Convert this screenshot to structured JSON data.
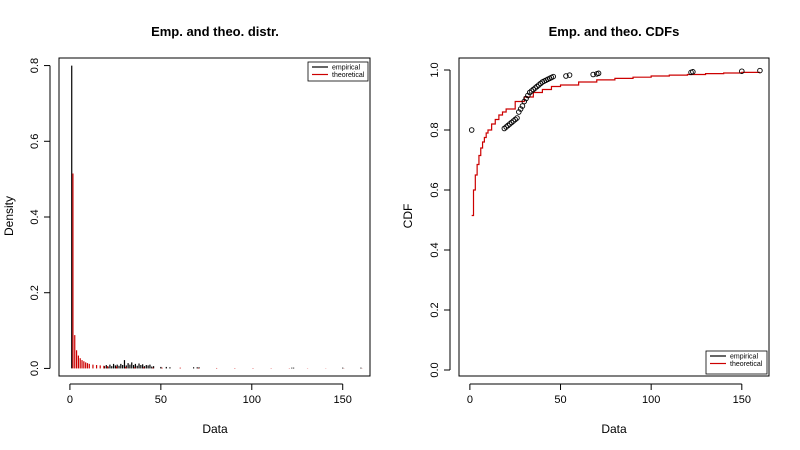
{
  "chart_data": [
    {
      "type": "bar",
      "title": "Emp. and theo. distr.",
      "xlabel": "Data",
      "ylabel": "Density",
      "xlim": [
        -6,
        165
      ],
      "ylim": [
        -0.02,
        0.82
      ],
      "xticks": [
        0,
        50,
        100,
        150
      ],
      "yticks": [
        0.0,
        0.2,
        0.4,
        0.6,
        0.8
      ],
      "legend": {
        "position": "top-right",
        "entries": [
          {
            "name": "empirical",
            "color": "#000000"
          },
          {
            "name": "theoretical",
            "color": "#cc0000"
          }
        ]
      },
      "series": [
        {
          "name": "empirical",
          "color": "#000000",
          "x": [
            1,
            19,
            20,
            21,
            22,
            23,
            24,
            25,
            26,
            27,
            28,
            29,
            30,
            31,
            32,
            33,
            34,
            35,
            36,
            37,
            38,
            39,
            40,
            41,
            42,
            43,
            44,
            45,
            46,
            50,
            53,
            55,
            68,
            70,
            71,
            122,
            123,
            150,
            160
          ],
          "values": [
            0.8,
            0.006,
            0.009,
            0.005,
            0.01,
            0.006,
            0.012,
            0.008,
            0.01,
            0.007,
            0.012,
            0.009,
            0.022,
            0.008,
            0.014,
            0.01,
            0.016,
            0.009,
            0.012,
            0.007,
            0.013,
            0.009,
            0.011,
            0.006,
            0.009,
            0.008,
            0.01,
            0.005,
            0.006,
            0.004,
            0.004,
            0.003,
            0.003,
            0.003,
            0.003,
            0.002,
            0.002,
            0.002,
            0.002
          ]
        },
        {
          "name": "theoretical",
          "color": "#cc0000",
          "x": [
            1,
            2,
            3,
            4,
            5,
            6,
            7,
            8,
            9,
            10,
            12,
            14,
            16,
            18,
            20,
            25,
            30,
            35,
            40,
            45,
            50,
            60,
            70,
            80,
            90,
            100,
            110,
            120,
            130,
            140,
            150,
            160
          ],
          "values": [
            0.515,
            0.088,
            0.048,
            0.034,
            0.027,
            0.022,
            0.019,
            0.016,
            0.014,
            0.012,
            0.01,
            0.009,
            0.008,
            0.007,
            0.006,
            0.005,
            0.004,
            0.003,
            0.003,
            0.002,
            0.002,
            0.002,
            0.0015,
            0.0012,
            0.001,
            0.001,
            0.0008,
            0.0007,
            0.0006,
            0.0005,
            0.0005,
            0.0004
          ]
        }
      ]
    },
    {
      "type": "line",
      "title": "Emp. and theo. CDFs",
      "xlabel": "Data",
      "ylabel": "CDF",
      "xlim": [
        -6,
        165
      ],
      "ylim": [
        -0.02,
        1.04
      ],
      "xticks": [
        0,
        50,
        100,
        150
      ],
      "yticks": [
        0.0,
        0.2,
        0.4,
        0.6,
        0.8,
        1.0
      ],
      "legend": {
        "position": "bottom-right",
        "entries": [
          {
            "name": "empirical",
            "color": "#000000"
          },
          {
            "name": "theoretical",
            "color": "#cc0000"
          }
        ]
      },
      "series": [
        {
          "name": "empirical",
          "color": "#000000",
          "marker": "open-circle",
          "x": [
            1,
            19,
            20,
            21,
            22,
            23,
            24,
            25,
            26,
            27,
            28,
            29,
            30,
            31,
            32,
            33,
            34,
            35,
            36,
            37,
            38,
            39,
            40,
            41,
            42,
            43,
            44,
            45,
            46,
            53,
            55,
            68,
            70,
            71,
            122,
            123,
            150,
            160
          ],
          "y": [
            0.8,
            0.805,
            0.81,
            0.815,
            0.82,
            0.825,
            0.83,
            0.835,
            0.84,
            0.86,
            0.87,
            0.88,
            0.895,
            0.905,
            0.915,
            0.925,
            0.93,
            0.935,
            0.94,
            0.945,
            0.95,
            0.955,
            0.96,
            0.963,
            0.966,
            0.969,
            0.972,
            0.975,
            0.978,
            0.98,
            0.983,
            0.985,
            0.987,
            0.989,
            0.992,
            0.994,
            0.996,
            0.998
          ]
        },
        {
          "name": "theoretical",
          "color": "#cc0000",
          "step": true,
          "x": [
            1,
            2,
            3,
            4,
            5,
            6,
            7,
            8,
            9,
            10,
            12,
            14,
            16,
            18,
            20,
            25,
            30,
            35,
            40,
            45,
            50,
            60,
            70,
            80,
            90,
            100,
            110,
            120,
            130,
            140,
            150,
            160
          ],
          "y": [
            0.515,
            0.6,
            0.65,
            0.685,
            0.715,
            0.74,
            0.76,
            0.775,
            0.79,
            0.8,
            0.82,
            0.835,
            0.85,
            0.86,
            0.87,
            0.895,
            0.91,
            0.925,
            0.935,
            0.945,
            0.95,
            0.96,
            0.967,
            0.972,
            0.976,
            0.98,
            0.983,
            0.985,
            0.988,
            0.99,
            0.992,
            0.993
          ]
        }
      ]
    }
  ]
}
